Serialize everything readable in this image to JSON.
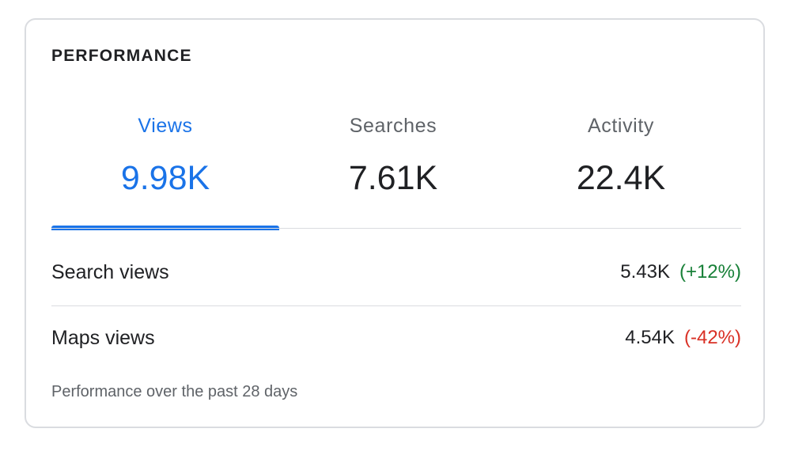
{
  "card": {
    "title": "PERFORMANCE",
    "footnote": "Performance over the past 28 days"
  },
  "tabs": [
    {
      "label": "Views",
      "value": "9.98K",
      "active": true
    },
    {
      "label": "Searches",
      "value": "7.61K",
      "active": false
    },
    {
      "label": "Activity",
      "value": "22.4K",
      "active": false
    }
  ],
  "rows": [
    {
      "label": "Search views",
      "value": "5.43K",
      "change": "(+12%)",
      "trend": "up"
    },
    {
      "label": "Maps views",
      "value": "4.54K",
      "change": "(-42%)",
      "trend": "down"
    }
  ],
  "colors": {
    "accent": "#1a73e8",
    "positive": "#188038",
    "negative": "#d93025",
    "border": "#dadce0"
  }
}
